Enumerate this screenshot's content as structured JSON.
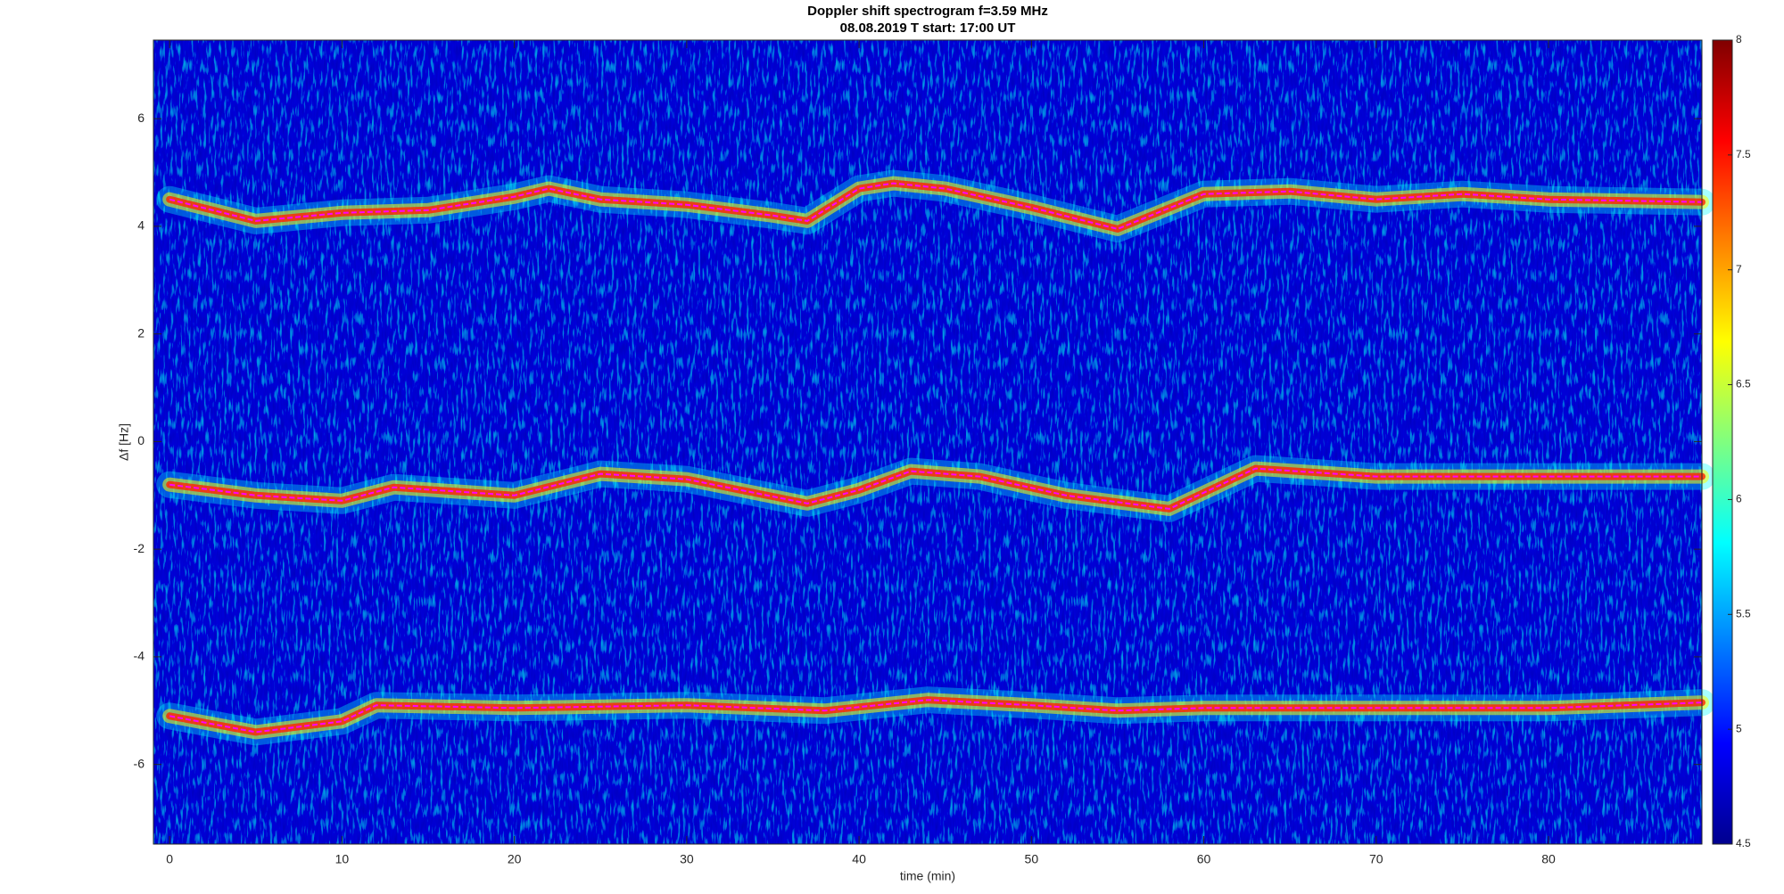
{
  "chart_data": {
    "type": "spectrogram",
    "title": "Doppler shift spectrogram f=3.59 MHz",
    "subtitle": "08.08.2019   T start: 17:00 UT",
    "x_label": "time (min)",
    "y_label": "Δf [Hz]",
    "xlim": [
      -0.94,
      88.9
    ],
    "xticks": [
      0,
      10,
      20,
      30,
      40,
      50,
      60,
      70,
      80
    ],
    "ylim": [
      -7.48,
      7.46
    ],
    "yticks": [
      -6,
      -4,
      -2,
      0,
      2,
      4,
      6
    ],
    "colormap": "jet",
    "clim": [
      4.5,
      8
    ],
    "cticks": [
      4.5,
      5,
      5.5,
      6,
      6.5,
      7,
      7.5,
      8
    ],
    "series": [
      {
        "color": "#ff00ff",
        "x": [
          0,
          5,
          10,
          15,
          20,
          22,
          25,
          30,
          35,
          37,
          40,
          42,
          45,
          50,
          55,
          60,
          65,
          70,
          75,
          80,
          88.9
        ],
        "values": [
          4.5,
          4.1,
          4.25,
          4.3,
          4.55,
          4.7,
          4.5,
          4.4,
          4.2,
          4.1,
          4.7,
          4.8,
          4.7,
          4.35,
          3.95,
          4.6,
          4.65,
          4.5,
          4.6,
          4.5,
          4.45
        ]
      },
      {
        "color": "#ff00ff",
        "x": [
          0,
          5,
          10,
          13,
          20,
          25,
          30,
          37,
          40,
          43,
          47,
          52,
          58,
          61,
          63,
          70,
          80,
          88.9
        ],
        "values": [
          -0.8,
          -1.0,
          -1.1,
          -0.85,
          -1.0,
          -0.6,
          -0.7,
          -1.15,
          -0.9,
          -0.55,
          -0.65,
          -1.0,
          -1.25,
          -0.8,
          -0.5,
          -0.65,
          -0.65,
          -0.65
        ]
      },
      {
        "color": "#ff00ff",
        "x": [
          0,
          5,
          10,
          12,
          20,
          30,
          38,
          44,
          50,
          55,
          60,
          70,
          80,
          88.9
        ],
        "values": [
          -5.1,
          -5.4,
          -5.2,
          -4.9,
          -4.95,
          -4.9,
          -5.0,
          -4.8,
          -4.9,
          -5.0,
          -4.95,
          -4.95,
          -4.95,
          -4.85
        ]
      }
    ]
  }
}
